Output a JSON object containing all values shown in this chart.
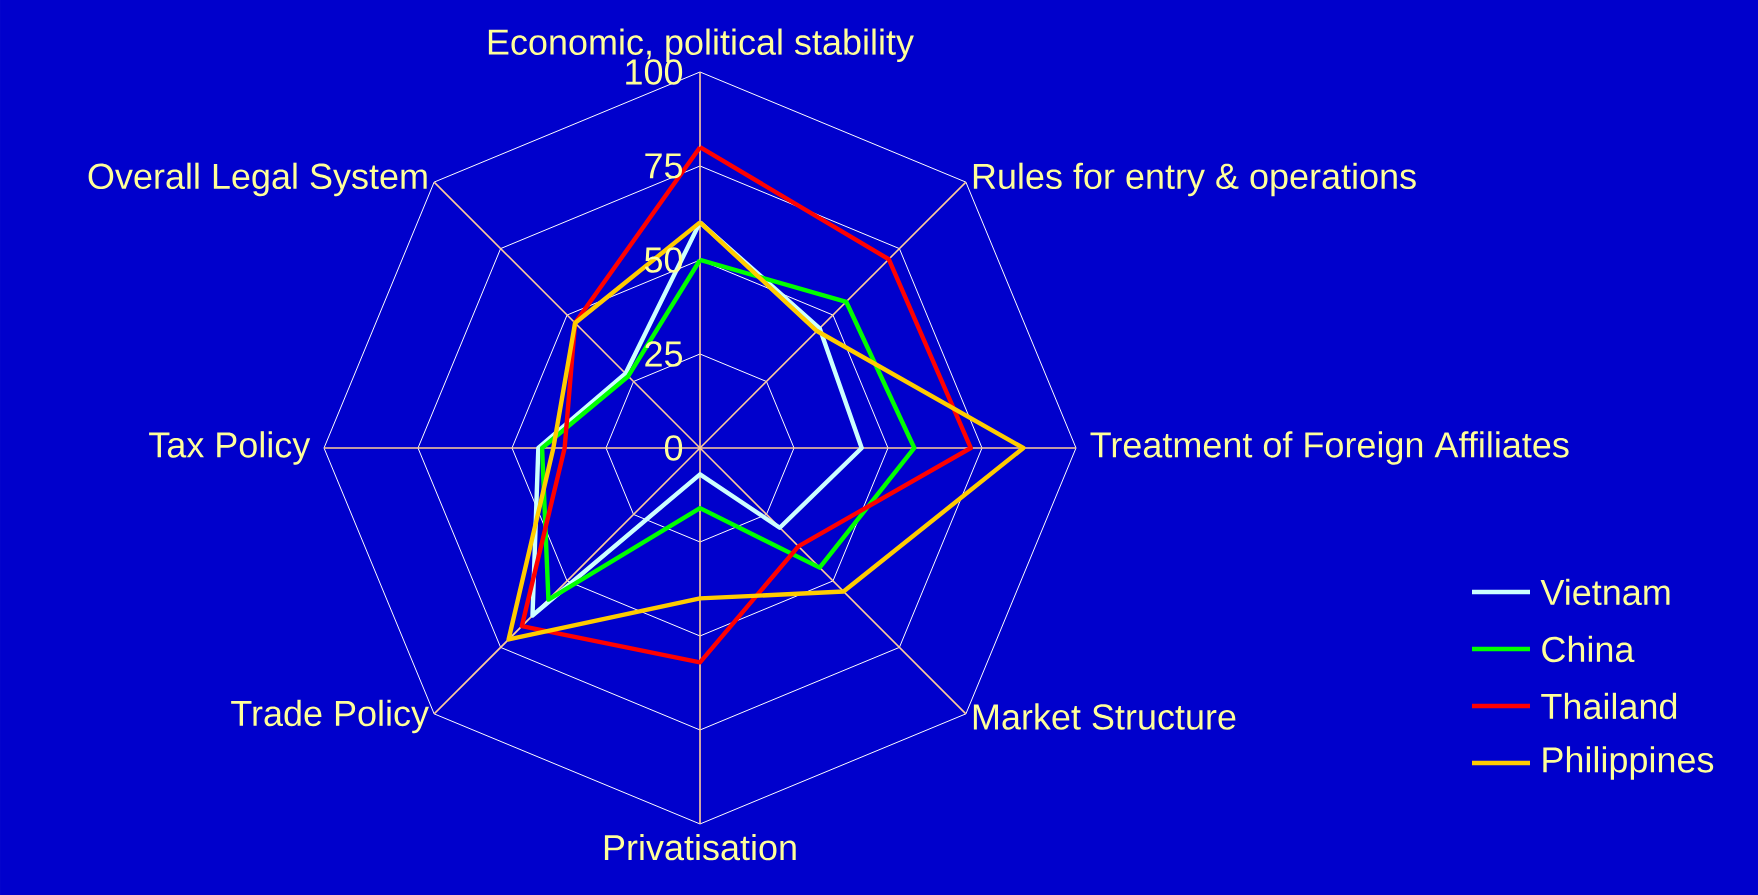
{
  "chart_data": {
    "type": "radar",
    "categories": [
      "Economic, political stability",
      "Rules for entry & operations",
      "Treatment of Foreign Affiliates",
      "Market Structure",
      "Privatisation",
      "Trade Policy",
      "Tax Policy",
      "Overall Legal System"
    ],
    "series": [
      {
        "name": "Vietnam",
        "color": "#ccffff",
        "values": [
          60,
          45,
          43,
          30,
          7,
          63,
          43,
          28
        ]
      },
      {
        "name": "China",
        "color": "#00ff00",
        "values": [
          50,
          55,
          57,
          45,
          16,
          57,
          42,
          27
        ]
      },
      {
        "name": "Thailand",
        "color": "#ff0000",
        "values": [
          80,
          71,
          72,
          37,
          57,
          67,
          36,
          47
        ]
      },
      {
        "name": "Philippines",
        "color": "#ffcc00",
        "values": [
          60,
          44,
          86,
          54,
          40,
          72,
          39,
          47
        ]
      }
    ],
    "ylim": [
      0,
      100
    ],
    "yticks": [
      0,
      25,
      50,
      75,
      100
    ],
    "grid": true,
    "legend": "bottom right"
  }
}
